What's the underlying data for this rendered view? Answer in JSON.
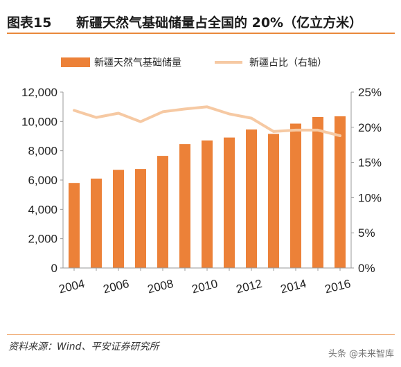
{
  "header": {
    "figure_number": "图表15",
    "title": "新疆天然气基础储量占全国的 20%（亿立方米）"
  },
  "footer": {
    "source": "资料来源：Wind、平安证券研究所",
    "watermark": "头条 @未来智库"
  },
  "colors": {
    "bar": "#ec8138",
    "line": "#f6c9a3",
    "accent_rule": "#e9883a",
    "axis": "#9a9a9a"
  },
  "chart_data": {
    "type": "bar",
    "title": "新疆天然气基础储量占全国的 20%（亿立方米）",
    "legend_position": "top",
    "grid": false,
    "categories": [
      "2004",
      "2005",
      "2006",
      "2007",
      "2008",
      "2009",
      "2010",
      "2011",
      "2012",
      "2013",
      "2014",
      "2015",
      "2016"
    ],
    "x_tick_labels": [
      "2004",
      "2006",
      "2008",
      "2010",
      "2012",
      "2014",
      "2016"
    ],
    "series": [
      {
        "name": "新疆天然气基础储量",
        "type": "bar",
        "axis": "left",
        "values": [
          5800,
          6100,
          6700,
          6750,
          7650,
          8450,
          8700,
          8900,
          9450,
          9150,
          9850,
          10300,
          10350
        ]
      },
      {
        "name": "新疆占比（右轴）",
        "type": "line",
        "axis": "right",
        "values": [
          22.4,
          21.4,
          22.0,
          20.8,
          22.2,
          22.6,
          22.9,
          21.9,
          21.3,
          19.4,
          19.6,
          19.6,
          18.8
        ]
      }
    ],
    "y_left": {
      "ylim": [
        0,
        12000
      ],
      "ticks": [
        "0",
        "2,000",
        "4,000",
        "6,000",
        "8,000",
        "10,000",
        "12,000"
      ],
      "tick_values": [
        0,
        2000,
        4000,
        6000,
        8000,
        10000,
        12000
      ]
    },
    "y_right": {
      "ylim": [
        0,
        25
      ],
      "ticks": [
        "0%",
        "5%",
        "10%",
        "15%",
        "20%",
        "25%"
      ],
      "tick_values": [
        0,
        5,
        10,
        15,
        20,
        25
      ]
    }
  }
}
